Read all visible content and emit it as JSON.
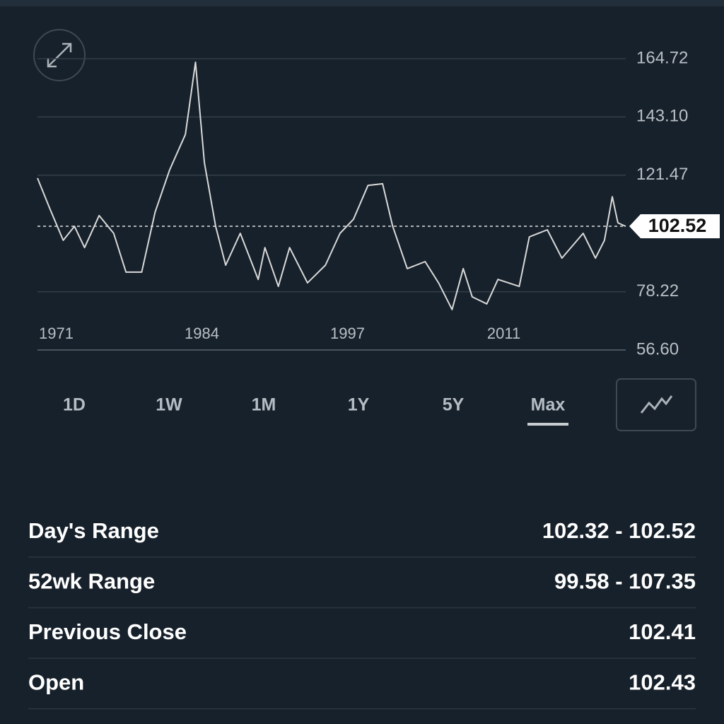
{
  "chart_data": {
    "type": "line",
    "x": [
      1971.0,
      1972.1,
      1973.3,
      1974.3,
      1975.2,
      1976.5,
      1977.8,
      1978.9,
      1980.3,
      1981.5,
      1982.8,
      1984.2,
      1985.1,
      1985.9,
      1986.9,
      1987.8,
      1989.1,
      1990.7,
      1991.3,
      1992.5,
      1993.5,
      1995.1,
      1996.7,
      1998.0,
      1999.2,
      2000.5,
      2001.8,
      2002.7,
      2004.0,
      2005.6,
      2006.8,
      2008.0,
      2009.0,
      2009.8,
      2011.1,
      2012.1,
      2014.0,
      2014.9,
      2016.5,
      2017.8,
      2019.7,
      2020.8,
      2021.6,
      2022.3,
      2022.8,
      2023.5
    ],
    "values": [
      120.4,
      109.1,
      97.3,
      102.5,
      94.6,
      106.5,
      99.9,
      85.5,
      85.5,
      107.8,
      123.5,
      136.6,
      163.4,
      126.1,
      102.5,
      88.1,
      99.9,
      82.8,
      94.6,
      80.2,
      94.6,
      81.5,
      88.1,
      99.9,
      105.1,
      117.7,
      118.3,
      102.5,
      86.8,
      89.4,
      81.5,
      71.6,
      86.8,
      76.3,
      73.7,
      82.8,
      80.2,
      98.6,
      101.2,
      90.7,
      99.9,
      90.7,
      97.3,
      113.5,
      103.8,
      102.5
    ],
    "color": "#d9d9d9",
    "xlim": [
      1971,
      2023.5
    ],
    "xticks": [
      1971,
      1984,
      1997,
      2011
    ],
    "ylim": [
      56.6,
      164.72
    ],
    "yticks": [
      {
        "value": 56.6,
        "label": "56.60"
      },
      78.22,
      121.47,
      {
        "value": 143.1,
        "label": "143.10"
      },
      164.72
    ],
    "grid": true,
    "current_value": 102.52
  },
  "range_tabs": {
    "options": [
      "1D",
      "1W",
      "1M",
      "1Y",
      "5Y",
      "Max"
    ],
    "selected": 5
  },
  "stats": [
    {
      "label": "Day's Range",
      "value": "102.32 - 102.52"
    },
    {
      "label": "52wk Range",
      "value": "99.58 - 107.35"
    },
    {
      "label": "Previous Close",
      "value": "102.41"
    },
    {
      "label": "Open",
      "value": "102.43"
    }
  ]
}
